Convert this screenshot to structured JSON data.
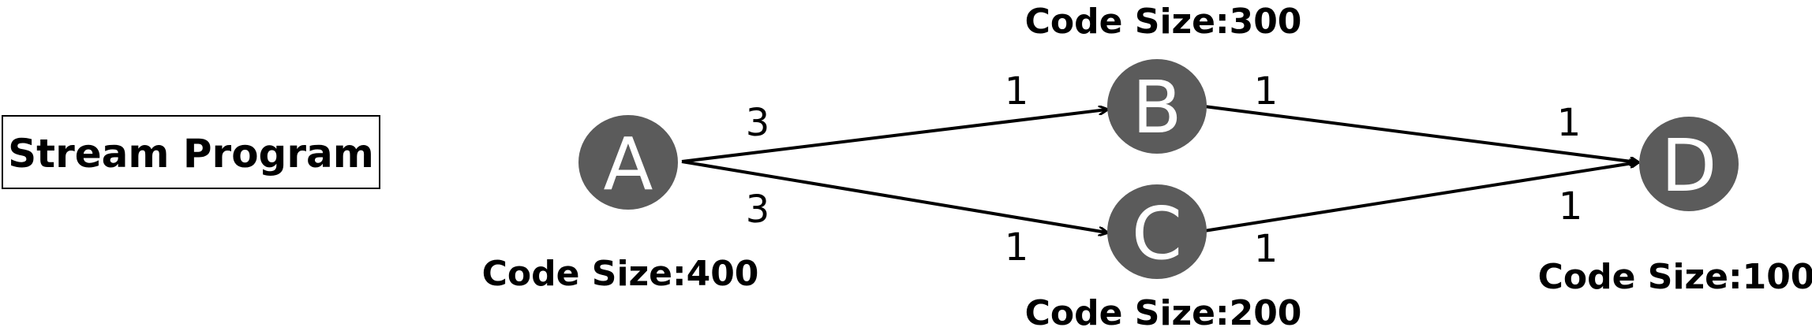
{
  "title": "Stream Program",
  "nodes": {
    "A": {
      "label": "A",
      "code_size": "Code Size:400"
    },
    "B": {
      "label": "B",
      "code_size": "Code Size:300"
    },
    "C": {
      "label": "C",
      "code_size": "Code Size:200"
    },
    "D": {
      "label": "D",
      "code_size": "Code Size:100"
    }
  },
  "edges": {
    "a_b": {
      "from": "A",
      "to": "B",
      "out_rate": "3",
      "in_rate": "1"
    },
    "a_c": {
      "from": "A",
      "to": "C",
      "out_rate": "3",
      "in_rate": "1"
    },
    "b_d": {
      "from": "B",
      "to": "D",
      "out_rate": "1",
      "in_rate": "1"
    },
    "c_d": {
      "from": "C",
      "to": "D",
      "out_rate": "1",
      "in_rate": "1"
    }
  },
  "colors": {
    "node_fill": "#5b5b5b",
    "node_text": "#ffffff",
    "edge": "#000000"
  }
}
